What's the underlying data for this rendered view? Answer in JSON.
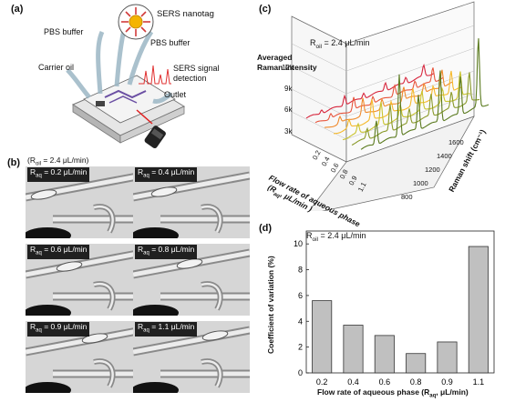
{
  "panels": {
    "a": "(a)",
    "b": "(b)",
    "c": "(c)",
    "d": "(d)"
  },
  "schematic": {
    "nanotag": "SERS nanotag",
    "pbs_left": "PBS buffer",
    "pbs_right": "PBS buffer",
    "carrier_oil": "Carrier oil",
    "signal_line1": "SERS signal",
    "signal_line2": "detection",
    "outlet": "Outlet"
  },
  "micrographs": {
    "header": "(R",
    "header_sub": "oil",
    "header_rest": " = 2.4 μL/min)",
    "sub": "aq",
    "items": [
      {
        "value": " = 0.2 μL/min"
      },
      {
        "value": " = 0.4 μL/min"
      },
      {
        "value": " = 0.6 μL/min"
      },
      {
        "value": " = 0.8 μL/min"
      },
      {
        "value": " = 0.9 μL/min"
      },
      {
        "value": " = 1.1 μL/min"
      }
    ]
  },
  "spectra3d": {
    "annotation": "R",
    "annotation_sub": "oil",
    "annotation_rest": " = 2.4 μL/min",
    "zlabel_line1": "Averaged",
    "zlabel_line2": "Raman intensity",
    "z_ticks": [
      "12k",
      "9k",
      "6k",
      "3k"
    ],
    "flow_label_line1": "Flow rate of aqueous phase",
    "flow_label_line2": "(R",
    "flow_label_sub": "aq",
    "flow_label_rest": ", μL/min )",
    "flow_ticks": [
      "0.2",
      "0.4",
      "0.6",
      "0.8",
      "0.9",
      "1.1"
    ],
    "shift_label": "Raman shift (cm⁻¹)",
    "shift_ticks": [
      "800",
      "1000",
      "1200",
      "1400",
      "1600"
    ],
    "series_colors": [
      "#d7263d",
      "#e8553c",
      "#f08a2c",
      "#f6b92b",
      "#c9c42f",
      "#8a9a2a",
      "#5a7a1e"
    ]
  },
  "chart_data": {
    "type": "bar",
    "title": "",
    "annotation": "R_oil = 2.4 μL/min",
    "annotation_parts": {
      "main": "R",
      "sub": "oil",
      "rest": " = 2.4 μL/min"
    },
    "categories": [
      "0.2",
      "0.4",
      "0.6",
      "0.8",
      "0.9",
      "1.1"
    ],
    "values": [
      5.6,
      3.7,
      2.9,
      1.5,
      2.4,
      9.8
    ],
    "xlabel": "Flow rate of aqueous phase (R",
    "xlabel_sub": "aq",
    "xlabel_rest": ", μL/min)",
    "ylabel": "Coefficient of variation (%)",
    "ylim": [
      0,
      11
    ],
    "yticks": [
      "0",
      "2",
      "4",
      "6",
      "8",
      "10"
    ],
    "bar_color": "#c0c0c0",
    "edge_color": "#333333"
  }
}
